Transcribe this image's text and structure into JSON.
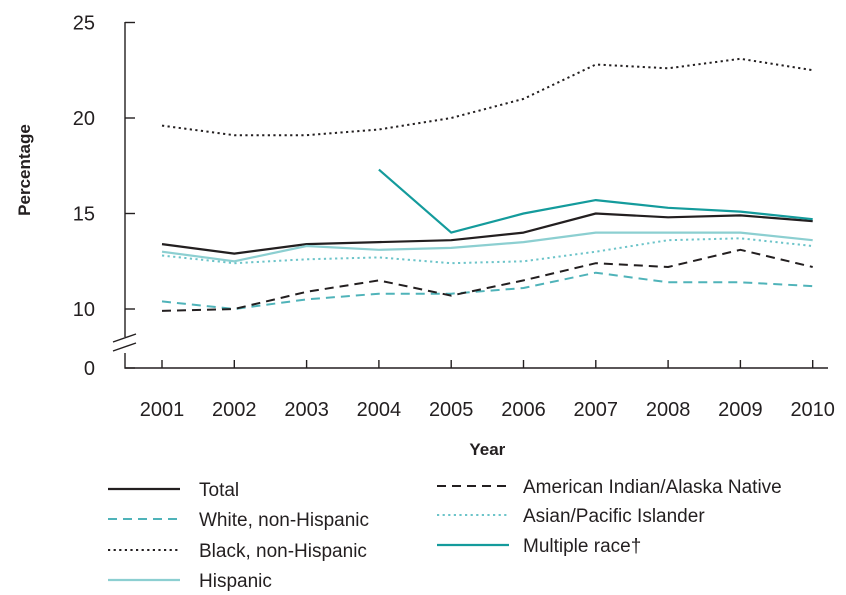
{
  "chart_data": {
    "type": "line",
    "x": [
      2001,
      2002,
      2003,
      2004,
      2005,
      2006,
      2007,
      2008,
      2009,
      2010
    ],
    "xlabel": "Year",
    "ylabel": "Percentage",
    "ylim": [
      10,
      25
    ],
    "y_ticks": [
      "0",
      "10",
      "15",
      "20",
      "25"
    ],
    "y_axis_break": true,
    "grid": false,
    "legend_position": "bottom",
    "series": [
      {
        "name": "Total",
        "color": "#231f20",
        "dash": "solid",
        "values": [
          13.4,
          12.9,
          13.4,
          13.5,
          13.6,
          14.0,
          15.0,
          14.8,
          14.9,
          14.6
        ]
      },
      {
        "name": "White, non-Hispanic",
        "color": "#4fb3b9",
        "dash": "dashed",
        "values": [
          10.4,
          10.0,
          10.5,
          10.8,
          10.8,
          11.1,
          11.9,
          11.4,
          11.4,
          11.2
        ]
      },
      {
        "name": "Black, non-Hispanic",
        "color": "#231f20",
        "dash": "dotted",
        "values": [
          19.6,
          19.1,
          19.1,
          19.4,
          20.0,
          21.0,
          22.8,
          22.6,
          23.1,
          22.5
        ]
      },
      {
        "name": "Hispanic",
        "color": "#8ccfd1",
        "dash": "solid",
        "values": [
          13.0,
          12.5,
          13.3,
          13.1,
          13.2,
          13.5,
          14.0,
          14.0,
          14.0,
          13.6
        ]
      },
      {
        "name": "American Indian/Alaska Native",
        "color": "#231f20",
        "dash": "dashed",
        "values": [
          9.9,
          10.0,
          10.9,
          11.5,
          10.7,
          11.5,
          12.4,
          12.2,
          13.1,
          12.2
        ]
      },
      {
        "name": "Asian/Pacific Islander",
        "color": "#6cc4c9",
        "dash": "dotted",
        "values": [
          12.8,
          12.4,
          12.6,
          12.7,
          12.4,
          12.5,
          13.0,
          13.6,
          13.7,
          13.3
        ]
      },
      {
        "name": "Multiple race†",
        "color": "#149b9c",
        "dash": "solid",
        "values": [
          null,
          null,
          null,
          17.3,
          14.0,
          15.0,
          15.7,
          15.3,
          15.1,
          14.7
        ]
      }
    ]
  }
}
